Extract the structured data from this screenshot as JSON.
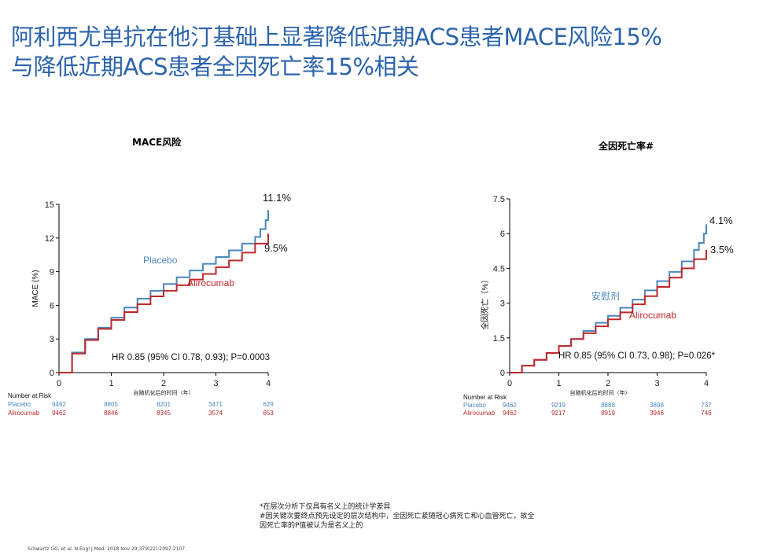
{
  "title": {
    "line1": "阿利西尤单抗在他汀基础上显著降低近期ACS患者MACE风险15%",
    "line2": "与降低近期ACS患者全因死亡率15%相关"
  },
  "colors": {
    "title": "#2b63ad",
    "placebo": "#4a86c1",
    "alirocumab": "#c0282a"
  },
  "chart_data": [
    {
      "type": "line",
      "title": "MACE风险",
      "xlabel": "自随机化后的时间（年）",
      "ylabel": "MACE (%)",
      "xlim": [
        0,
        4
      ],
      "ylim": [
        0,
        15
      ],
      "xticks": [
        "0",
        "1",
        "2",
        "3",
        "4"
      ],
      "yticks": [
        "0",
        "3",
        "6",
        "9",
        "12",
        "15"
      ],
      "series": [
        {
          "name": "Placebo",
          "end_label": "11.1%",
          "x": [
            0,
            0.25,
            0.5,
            0.75,
            1.0,
            1.25,
            1.5,
            1.75,
            2.0,
            2.25,
            2.5,
            2.75,
            3.0,
            3.25,
            3.5,
            3.75,
            3.85,
            3.95,
            4.0
          ],
          "y": [
            0,
            1.8,
            3.0,
            4.0,
            4.9,
            5.8,
            6.6,
            7.3,
            7.9,
            8.5,
            9.1,
            9.7,
            10.3,
            10.9,
            11.5,
            12.1,
            12.8,
            13.6,
            14.5
          ]
        },
        {
          "name": "Alirocumab",
          "end_label": "9.5%",
          "x": [
            0,
            0.25,
            0.5,
            0.75,
            1.0,
            1.25,
            1.5,
            1.75,
            2.0,
            2.25,
            2.5,
            2.75,
            3.0,
            3.25,
            3.5,
            3.75,
            4.0
          ],
          "y": [
            0,
            1.7,
            2.9,
            3.9,
            4.7,
            5.4,
            6.1,
            6.8,
            7.3,
            7.8,
            8.3,
            8.8,
            9.4,
            10.0,
            10.7,
            11.5,
            12.4
          ]
        }
      ],
      "annotation": "HR 0.85 (95% CI 0.78, 0.93); P=0.0003",
      "risk_table": {
        "header": "Number at Risk",
        "rows": [
          {
            "name": "Placebo",
            "values": [
              "9462",
              "8805",
              "8201",
              "3471",
              "629"
            ]
          },
          {
            "name": "Alirocumab",
            "values": [
              "9462",
              "8846",
              "8345",
              "3574",
              "653"
            ]
          }
        ]
      },
      "grid": false
    },
    {
      "type": "line",
      "title": "全因死亡率#",
      "xlabel": "自随机化后的时间（年）",
      "ylabel": "全因死亡（%）",
      "xlim": [
        0,
        4
      ],
      "ylim": [
        0,
        7.5
      ],
      "xticks": [
        "0",
        "1",
        "2",
        "3",
        "4"
      ],
      "yticks": [
        "0",
        "1.5",
        "3",
        "4.5",
        "6",
        "7.5"
      ],
      "series": [
        {
          "name": "安慰剂",
          "end_label": "4.1%",
          "x": [
            0,
            0.25,
            0.5,
            0.75,
            1.0,
            1.25,
            1.5,
            1.75,
            2.0,
            2.25,
            2.5,
            2.75,
            3.0,
            3.25,
            3.5,
            3.75,
            3.85,
            3.95,
            4.0
          ],
          "y": [
            0,
            0.3,
            0.55,
            0.85,
            1.15,
            1.45,
            1.8,
            2.15,
            2.45,
            2.8,
            3.15,
            3.55,
            3.95,
            4.35,
            4.8,
            5.3,
            5.6,
            6.0,
            6.4
          ]
        },
        {
          "name": "Alirocumab",
          "end_label": "3.5%",
          "x": [
            0,
            0.25,
            0.5,
            0.75,
            1.0,
            1.25,
            1.5,
            1.75,
            2.0,
            2.25,
            2.5,
            2.75,
            3.0,
            3.25,
            3.5,
            3.75,
            4.0
          ],
          "y": [
            0,
            0.3,
            0.55,
            0.85,
            1.15,
            1.45,
            1.7,
            2.0,
            2.3,
            2.6,
            2.95,
            3.3,
            3.7,
            4.1,
            4.5,
            4.9,
            5.3
          ]
        }
      ],
      "annotation": "HR 0.85 (95% CI 0.73, 0.98); P=0.026*",
      "risk_table": {
        "header": "Number at Risk",
        "rows": [
          {
            "name": "Placebo",
            "values": [
              "9462",
              "9219",
              "8888",
              "3898",
              "737"
            ]
          },
          {
            "name": "Alirocumab",
            "values": [
              "9462",
              "9217",
              "8919",
              "3946",
              "746"
            ]
          }
        ]
      },
      "grid": false
    }
  ],
  "footnotes": [
    "*在层次分析下仅具有名义上的统计学差异",
    "#因关键次要终点预先设定的层次结构中，全因死亡紧随冠心病死亡和心血管死亡，故全",
    "因死亡率的P值被认为是名义上的"
  ],
  "citation": "Schwartz GG, et al. N Engl J Med. 2018 Nov 29;379(22):2097-2107."
}
